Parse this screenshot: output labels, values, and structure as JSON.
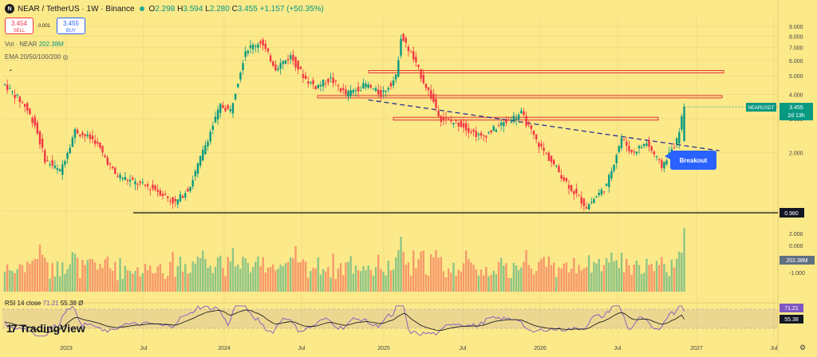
{
  "header": {
    "symbol_badge": "N",
    "symbol": "NEAR / TetherUS · 1W · Binance",
    "o_label": "O",
    "open": "2.298",
    "h_label": "H",
    "high": "3.594",
    "l_label": "L",
    "low": "2.280",
    "c_label": "C",
    "close": "3.455",
    "change": "+1.157 (+50.35%)"
  },
  "trade": {
    "sell_price": "3.454",
    "sell_label": "SELL",
    "spread": "0.001",
    "buy_price": "3.455",
    "buy_label": "BUY"
  },
  "indicators": {
    "vol_label": "Vol · NEAR",
    "vol_value": "202.38M",
    "ema_label": "EMA 20/50/100/200",
    "rsi_label": "RSI 14 close",
    "rsi_value": "71.21",
    "rsi_ma": "55.38",
    "rsi_extra": "Ø"
  },
  "watermark": "TradingView",
  "annotation": {
    "text": "Breakout",
    "color": "#2962ff"
  },
  "colors": {
    "up": "#089981",
    "down": "#f23645",
    "background": "#fce98a",
    "accent": "#2962ff"
  },
  "chart_data": {
    "type": "candlestick",
    "timeframe": "1W",
    "y_scale": "log",
    "ylim": [
      0.85,
      9.3
    ],
    "y_ticks": [
      "9.000",
      "8.000",
      "7.000",
      "6.000",
      "5.000",
      "4.000",
      "3.000",
      "2.000",
      "1.000"
    ],
    "x_tick_labels": [
      "2023",
      "Jul",
      "2024",
      "Jul",
      "2025",
      "Jul",
      "2026",
      "Jul",
      "2027",
      "Jul"
    ],
    "price_tag": {
      "label": "NEARUSDT",
      "value": "3.455",
      "countdown": "2d 13h"
    },
    "level_tag": "0.980",
    "anchors": [
      [
        0,
        4.5
      ],
      [
        8,
        3.5
      ],
      [
        12,
        2.8
      ],
      [
        16,
        1.85
      ],
      [
        22,
        1.6
      ],
      [
        28,
        2.6
      ],
      [
        36,
        2.3
      ],
      [
        44,
        1.55
      ],
      [
        52,
        1.4
      ],
      [
        60,
        1.3
      ],
      [
        68,
        1.1
      ],
      [
        74,
        1.35
      ],
      [
        80,
        2.2
      ],
      [
        86,
        3.5
      ],
      [
        90,
        3.3
      ],
      [
        96,
        6.8
      ],
      [
        102,
        7.5
      ],
      [
        108,
        5.5
      ],
      [
        114,
        6.3
      ],
      [
        120,
        4.8
      ],
      [
        124,
        4.4
      ],
      [
        130,
        4.8
      ],
      [
        136,
        4.0
      ],
      [
        144,
        4.5
      ],
      [
        150,
        4.0
      ],
      [
        156,
        4.9
      ],
      [
        158,
        8.0
      ],
      [
        162,
        6.5
      ],
      [
        166,
        5.0
      ],
      [
        170,
        3.9
      ],
      [
        174,
        3.0
      ],
      [
        182,
        2.8
      ],
      [
        190,
        2.4
      ],
      [
        198,
        2.8
      ],
      [
        206,
        3.2
      ],
      [
        212,
        2.3
      ],
      [
        218,
        1.8
      ],
      [
        226,
        1.3
      ],
      [
        232,
        1.05
      ],
      [
        240,
        1.35
      ],
      [
        246,
        2.4
      ],
      [
        250,
        2.0
      ],
      [
        256,
        2.25
      ],
      [
        262,
        1.7
      ],
      [
        268,
        2.3
      ],
      [
        271,
        3.455
      ]
    ],
    "last_candle": {
      "open": 2.298,
      "high": 3.594,
      "low": 2.28,
      "close": 3.455
    },
    "volume": {
      "last_value": "202.38M",
      "ticks": [
        "2.000",
        "0.000",
        "-1.000"
      ]
    },
    "rsi": {
      "last_value": 71.21,
      "ma_value": 55.38,
      "ylim": [
        20,
        85
      ]
    },
    "annotations": {
      "support_line": 0.98,
      "resistance_zones": [
        [
          5.2,
          5.32
        ],
        [
          3.85,
          3.95
        ],
        [
          2.95,
          3.05
        ]
      ],
      "trendline": [
        [
          145,
          3.75
        ],
        [
          285,
          2.05
        ]
      ],
      "callout": "Breakout"
    }
  }
}
